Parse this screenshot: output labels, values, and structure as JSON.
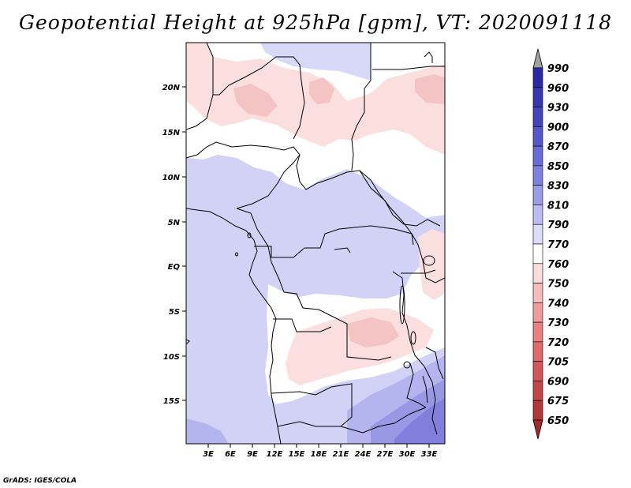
{
  "title": "Geopotential Height at 925hPa [gpm], VT: 2020091118",
  "credit": "GrADS: IGES/COLA",
  "lat_labels": [
    "20N",
    "15N",
    "10N",
    "5N",
    "EQ",
    "5S",
    "10S",
    "15S"
  ],
  "lat_values": [
    20,
    15,
    10,
    5,
    0,
    -5,
    -10,
    -15
  ],
  "lon_labels": [
    "3E",
    "6E",
    "9E",
    "12E",
    "15E",
    "18E",
    "21E",
    "24E",
    "27E",
    "30E",
    "33E"
  ],
  "lon_values": [
    3,
    6,
    9,
    12,
    15,
    18,
    21,
    24,
    27,
    30,
    33
  ],
  "extent": {
    "lon_min": 0,
    "lon_max": 35,
    "lat_min": -20,
    "lat_max": 24.5
  },
  "colorbar": {
    "levels": [
      "990",
      "960",
      "930",
      "900",
      "870",
      "850",
      "830",
      "810",
      "790",
      "770",
      "760",
      "750",
      "740",
      "730",
      "720",
      "705",
      "690",
      "675",
      "650"
    ],
    "colors": [
      "#1e1e96",
      "#2a2aa6",
      "#3636b4",
      "#4444c0",
      "#5656cc",
      "#6a6ad8",
      "#8080e0",
      "#9c9ce8",
      "#bcbcf2",
      "#dcdcfa",
      "#ffffff",
      "#fadcdc",
      "#f6bcbc",
      "#f09c9c",
      "#ea8080",
      "#e06a6a",
      "#d45656",
      "#c44444",
      "#b43636",
      "#a42a2a"
    ]
  }
}
